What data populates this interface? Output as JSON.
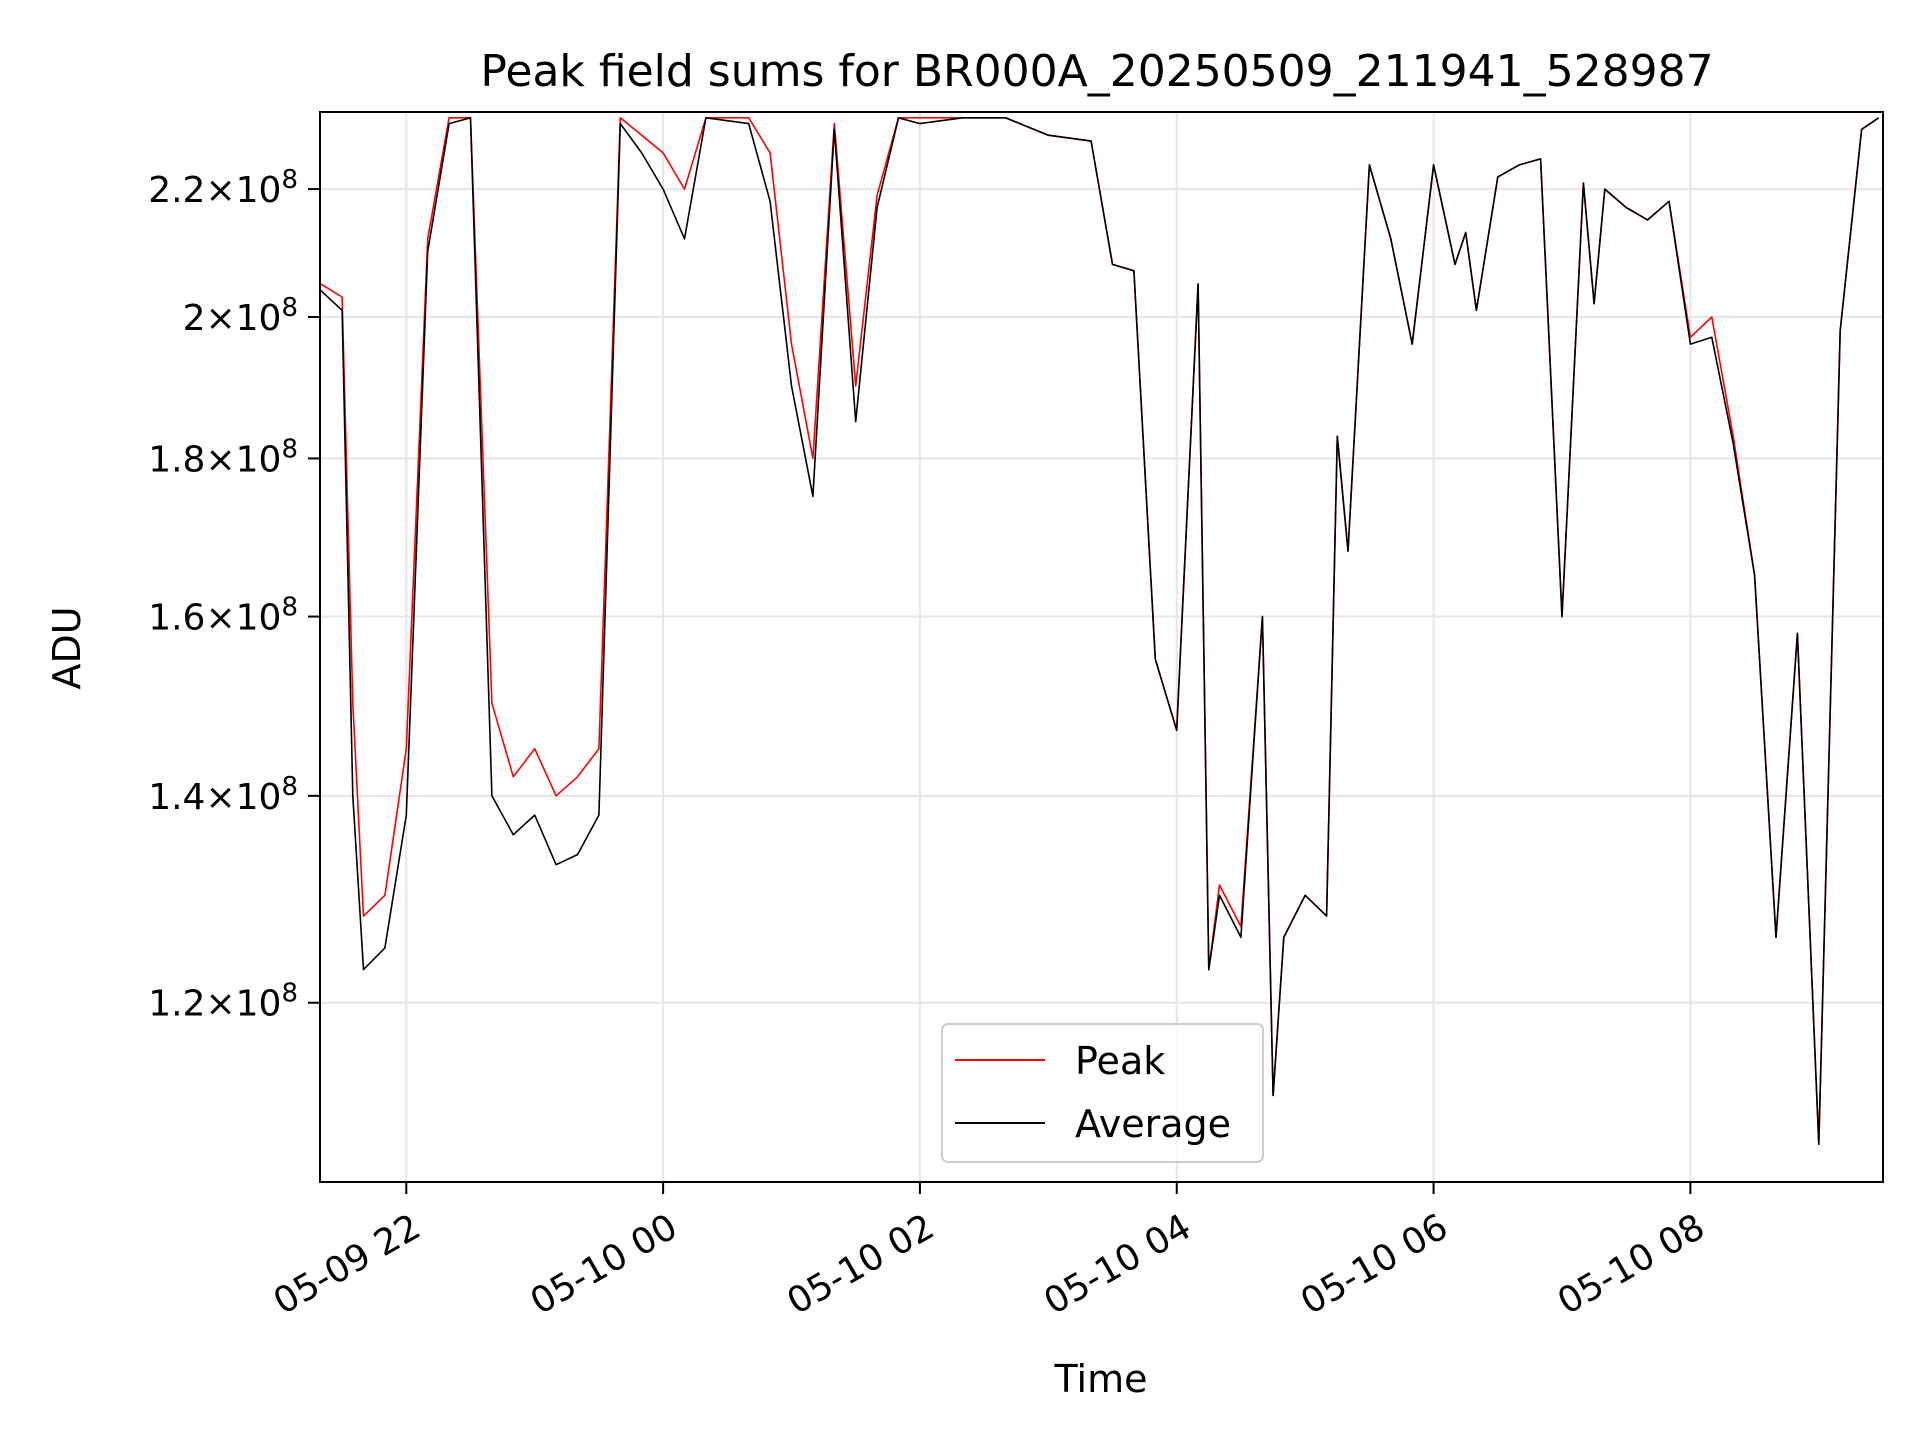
{
  "chart_data": {
    "type": "line",
    "title": "Peak field sums for BR000A_20250509_211941_528987",
    "xlabel": "Time",
    "ylabel": "ADU",
    "y_scale": "log",
    "ylim": [
      105000000,
      233000000
    ],
    "xlim": [
      "2025-05-09 21:19:41",
      "2025-05-10 09:30:00"
    ],
    "grid": true,
    "legend_position": "lower center",
    "x_ticks": [
      {
        "value": "2025-05-09 22:00",
        "label": "05-09 22"
      },
      {
        "value": "2025-05-10 00:00",
        "label": "05-10 00"
      },
      {
        "value": "2025-05-10 02:00",
        "label": "05-10 02"
      },
      {
        "value": "2025-05-10 04:00",
        "label": "05-10 04"
      },
      {
        "value": "2025-05-10 06:00",
        "label": "05-10 06"
      },
      {
        "value": "2025-05-10 08:00",
        "label": "05-10 08"
      }
    ],
    "y_ticks": [
      {
        "value": 120000000,
        "mantissa": "1.2",
        "base": "10",
        "exp": "8"
      },
      {
        "value": 140000000,
        "mantissa": "1.4",
        "base": "10",
        "exp": "8"
      },
      {
        "value": 160000000,
        "mantissa": "1.6",
        "base": "10",
        "exp": "8"
      },
      {
        "value": 180000000,
        "mantissa": "1.8",
        "base": "10",
        "exp": "8"
      },
      {
        "value": 200000000,
        "mantissa": "2",
        "base": "10",
        "exp": "8"
      },
      {
        "value": 220000000,
        "mantissa": "2.2",
        "base": "10",
        "exp": "8"
      }
    ],
    "series": [
      {
        "name": "Peak",
        "color": "#ff0000"
      },
      {
        "name": "Average",
        "color": "#000000"
      }
    ],
    "x": [
      "2025-05-09 21:20",
      "2025-05-09 21:30",
      "2025-05-09 21:35",
      "2025-05-09 21:40",
      "2025-05-09 21:50",
      "2025-05-09 22:00",
      "2025-05-09 22:10",
      "2025-05-09 22:20",
      "2025-05-09 22:30",
      "2025-05-09 22:40",
      "2025-05-09 22:50",
      "2025-05-09 23:00",
      "2025-05-09 23:10",
      "2025-05-09 23:20",
      "2025-05-09 23:30",
      "2025-05-09 23:40",
      "2025-05-09 23:50",
      "2025-05-10 00:00",
      "2025-05-10 00:10",
      "2025-05-10 00:20",
      "2025-05-10 00:40",
      "2025-05-10 00:50",
      "2025-05-10 01:00",
      "2025-05-10 01:10",
      "2025-05-10 01:20",
      "2025-05-10 01:30",
      "2025-05-10 01:40",
      "2025-05-10 01:50",
      "2025-05-10 02:00",
      "2025-05-10 02:20",
      "2025-05-10 02:40",
      "2025-05-10 03:00",
      "2025-05-10 03:20",
      "2025-05-10 03:30",
      "2025-05-10 03:40",
      "2025-05-10 03:50",
      "2025-05-10 04:00",
      "2025-05-10 04:10",
      "2025-05-10 04:15",
      "2025-05-10 04:20",
      "2025-05-10 04:30",
      "2025-05-10 04:40",
      "2025-05-10 04:45",
      "2025-05-10 04:50",
      "2025-05-10 05:00",
      "2025-05-10 05:10",
      "2025-05-10 05:15",
      "2025-05-10 05:20",
      "2025-05-10 05:30",
      "2025-05-10 05:40",
      "2025-05-10 05:50",
      "2025-05-10 06:00",
      "2025-05-10 06:10",
      "2025-05-10 06:15",
      "2025-05-10 06:20",
      "2025-05-10 06:30",
      "2025-05-10 06:40",
      "2025-05-10 06:50",
      "2025-05-10 07:00",
      "2025-05-10 07:10",
      "2025-05-10 07:15",
      "2025-05-10 07:20",
      "2025-05-10 07:30",
      "2025-05-10 07:40",
      "2025-05-10 07:50",
      "2025-05-10 08:00",
      "2025-05-10 08:10",
      "2025-05-10 08:20",
      "2025-05-10 08:30",
      "2025-05-10 08:40",
      "2025-05-10 08:50",
      "2025-05-10 09:00",
      "2025-05-10 09:10",
      "2025-05-10 09:20",
      "2025-05-10 09:28"
    ],
    "average": [
      204000000,
      201000000,
      140000000,
      123000000,
      125000000,
      138000000,
      210000000,
      231000000,
      232000000,
      140000000,
      136000000,
      138000000,
      133000000,
      134000000,
      138000000,
      231000000,
      226000000,
      220000000,
      212000000,
      232000000,
      231000000,
      218000000,
      190000000,
      175000000,
      230000000,
      185000000,
      217000000,
      232000000,
      231000000,
      232000000,
      232000000,
      229000000,
      228000000,
      208000000,
      207000000,
      155000000,
      147000000,
      205000000,
      123000000,
      130000000,
      126000000,
      160000000,
      112000000,
      126000000,
      130000000,
      128000000,
      183000000,
      168000000,
      224000000,
      212000000,
      196000000,
      224000000,
      208000000,
      213000000,
      201000000,
      222000000,
      224000000,
      225000000,
      160000000,
      221000000,
      202000000,
      220000000,
      217000000,
      215000000,
      218000000,
      196000000,
      197000000,
      182000000,
      165000000,
      126000000,
      158000000,
      108000000,
      198000000,
      230000000,
      232000000
    ],
    "peak": [
      205000000,
      203000000,
      150000000,
      128000000,
      130000000,
      145000000,
      212000000,
      232000000,
      232000000,
      150000000,
      142000000,
      145000000,
      140000000,
      142000000,
      145000000,
      232000000,
      229000000,
      226000000,
      220000000,
      232000000,
      232000000,
      226000000,
      196000000,
      180000000,
      231000000,
      190000000,
      219000000,
      232000000,
      232000000,
      232000000,
      232000000,
      229000000,
      228000000,
      208000000,
      207000000,
      155000000,
      147000000,
      205000000,
      123000000,
      131000000,
      127000000,
      160000000,
      112000000,
      126000000,
      130000000,
      128000000,
      183000000,
      168000000,
      224000000,
      212000000,
      196000000,
      224000000,
      208000000,
      213000000,
      201000000,
      222000000,
      224000000,
      225000000,
      160000000,
      221000000,
      202000000,
      220000000,
      217000000,
      215000000,
      218000000,
      197000000,
      200000000,
      183000000,
      165000000,
      126000000,
      158000000,
      108000000,
      198000000,
      230000000,
      232000000
    ]
  }
}
